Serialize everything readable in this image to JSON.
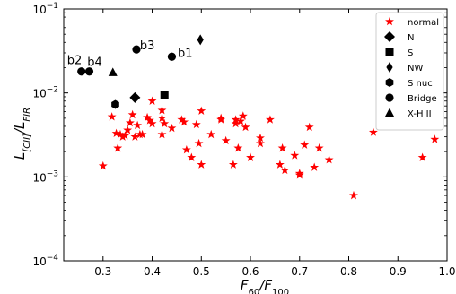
{
  "chart_data": {
    "type": "scatter",
    "xlabel_main": "F",
    "xlabel_sub1": "60",
    "xlabel_sep": "/F",
    "xlabel_sub2": "100",
    "ylabel_main": "L",
    "ylabel_sub1": "[CII]",
    "ylabel_sep": "/L",
    "ylabel_sub2": "FIR",
    "xlim": [
      0.22,
      1.0
    ],
    "ylim": [
      0.0001,
      0.1
    ],
    "yscale": "log",
    "x_ticks": [
      0.3,
      0.4,
      0.5,
      0.6,
      0.7,
      0.8,
      0.9,
      1.0
    ],
    "x_tick_labels": [
      "0.3",
      "0.4",
      "0.5",
      "0.6",
      "0.7",
      "0.8",
      "0.9",
      "1.0"
    ],
    "y_ticks": [
      0.0001,
      0.001,
      0.01,
      0.1
    ],
    "y_tick_labels": [
      {
        "base": "10",
        "exp": "−4"
      },
      {
        "base": "10",
        "exp": "−3"
      },
      {
        "base": "10",
        "exp": "−2"
      },
      {
        "base": "10",
        "exp": "−1"
      }
    ],
    "legend_position": "top-right",
    "series": [
      {
        "name": "normal",
        "marker": "star",
        "color": "#ff0000",
        "points": [
          [
            0.3,
            0.00135
          ],
          [
            0.318,
            0.0052
          ],
          [
            0.327,
            0.0033
          ],
          [
            0.33,
            0.0022
          ],
          [
            0.335,
            0.0032
          ],
          [
            0.34,
            0.003
          ],
          [
            0.345,
            0.0031
          ],
          [
            0.35,
            0.0036
          ],
          [
            0.355,
            0.0044
          ],
          [
            0.36,
            0.0055
          ],
          [
            0.365,
            0.003
          ],
          [
            0.37,
            0.0041
          ],
          [
            0.375,
            0.0032
          ],
          [
            0.38,
            0.0032
          ],
          [
            0.39,
            0.0051
          ],
          [
            0.395,
            0.0047
          ],
          [
            0.4,
            0.0043
          ],
          [
            0.4,
            0.008
          ],
          [
            0.42,
            0.0062
          ],
          [
            0.42,
            0.005
          ],
          [
            0.425,
            0.0043
          ],
          [
            0.42,
            0.0032
          ],
          [
            0.44,
            0.0038
          ],
          [
            0.46,
            0.0048
          ],
          [
            0.465,
            0.0045
          ],
          [
            0.47,
            0.0021
          ],
          [
            0.48,
            0.0017
          ],
          [
            0.49,
            0.0042
          ],
          [
            0.495,
            0.0025
          ],
          [
            0.5,
            0.0014
          ],
          [
            0.5,
            0.0061
          ],
          [
            0.52,
            0.0032
          ],
          [
            0.54,
            0.005
          ],
          [
            0.54,
            0.0048
          ],
          [
            0.55,
            0.0027
          ],
          [
            0.565,
            0.0014
          ],
          [
            0.57,
            0.0048
          ],
          [
            0.57,
            0.0043
          ],
          [
            0.575,
            0.0022
          ],
          [
            0.58,
            0.0046
          ],
          [
            0.585,
            0.0053
          ],
          [
            0.59,
            0.0039
          ],
          [
            0.6,
            0.0017
          ],
          [
            0.62,
            0.0029
          ],
          [
            0.62,
            0.0025
          ],
          [
            0.64,
            0.0048
          ],
          [
            0.66,
            0.0014
          ],
          [
            0.665,
            0.0022
          ],
          [
            0.67,
            0.0012
          ],
          [
            0.69,
            0.0018
          ],
          [
            0.7,
            0.0011
          ],
          [
            0.7,
            0.00105
          ],
          [
            0.71,
            0.0024
          ],
          [
            0.72,
            0.0039
          ],
          [
            0.73,
            0.0013
          ],
          [
            0.74,
            0.0022
          ],
          [
            0.76,
            0.0016
          ],
          [
            0.81,
            0.0006
          ],
          [
            0.85,
            0.0034
          ],
          [
            0.95,
            0.0017
          ],
          [
            0.975,
            0.0028
          ]
        ]
      },
      {
        "name": "N",
        "marker": "diamond",
        "color": "#000000",
        "points": [
          [
            0.365,
            0.0088
          ]
        ]
      },
      {
        "name": "S",
        "marker": "square",
        "color": "#000000",
        "points": [
          [
            0.425,
            0.0095
          ]
        ]
      },
      {
        "name": "NW",
        "marker": "thin_diamond",
        "color": "#000000",
        "points": [
          [
            0.498,
            0.043
          ]
        ]
      },
      {
        "name": "S nuc",
        "marker": "hexagon",
        "color": "#000000",
        "points": [
          [
            0.325,
            0.0073
          ]
        ]
      },
      {
        "name": "Bridge",
        "marker": "circle",
        "color": "#000000",
        "points": [
          [
            0.256,
            0.018
          ],
          [
            0.272,
            0.018
          ],
          [
            0.368,
            0.033
          ],
          [
            0.44,
            0.027
          ]
        ]
      },
      {
        "name": "X-H II",
        "marker": "triangle",
        "color": "#000000",
        "points": [
          [
            0.32,
            0.0175
          ]
        ]
      }
    ],
    "annotations": [
      {
        "text": "b3",
        "x": 0.375,
        "y": 0.033
      },
      {
        "text": "b1",
        "x": 0.452,
        "y": 0.027
      },
      {
        "text": "b2",
        "x": 0.227,
        "y": 0.022
      },
      {
        "text": "b4",
        "x": 0.268,
        "y": 0.021
      }
    ]
  }
}
